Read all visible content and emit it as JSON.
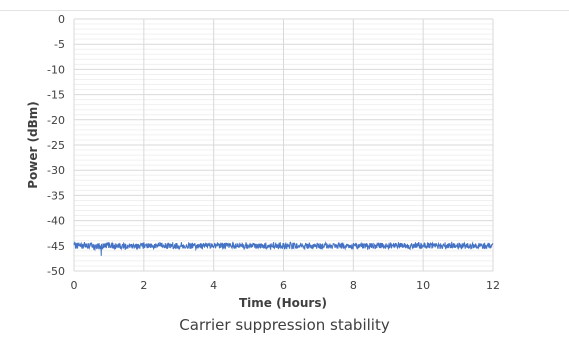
{
  "caption": "Carrier suppression stability",
  "chart_data": {
    "type": "line",
    "title": "",
    "xlabel": "Time (Hours)",
    "ylabel": "Power (dBm)",
    "xlim": [
      0,
      12
    ],
    "ylim": [
      -50,
      0
    ],
    "xticks": [
      0,
      2,
      4,
      6,
      8,
      10,
      12
    ],
    "yticks": [
      0,
      -5,
      -10,
      -15,
      -20,
      -25,
      -30,
      -35,
      -40,
      -45,
      -50
    ],
    "grid": true,
    "legend": "none",
    "series": [
      {
        "color": "#4472c4",
        "x_start": 0,
        "x_end": 12,
        "mean": -45.0,
        "noise_range": [
          -45.8,
          -44.2
        ],
        "min_spike": {
          "x": 0.78,
          "y": -47.0
        }
      }
    ]
  }
}
